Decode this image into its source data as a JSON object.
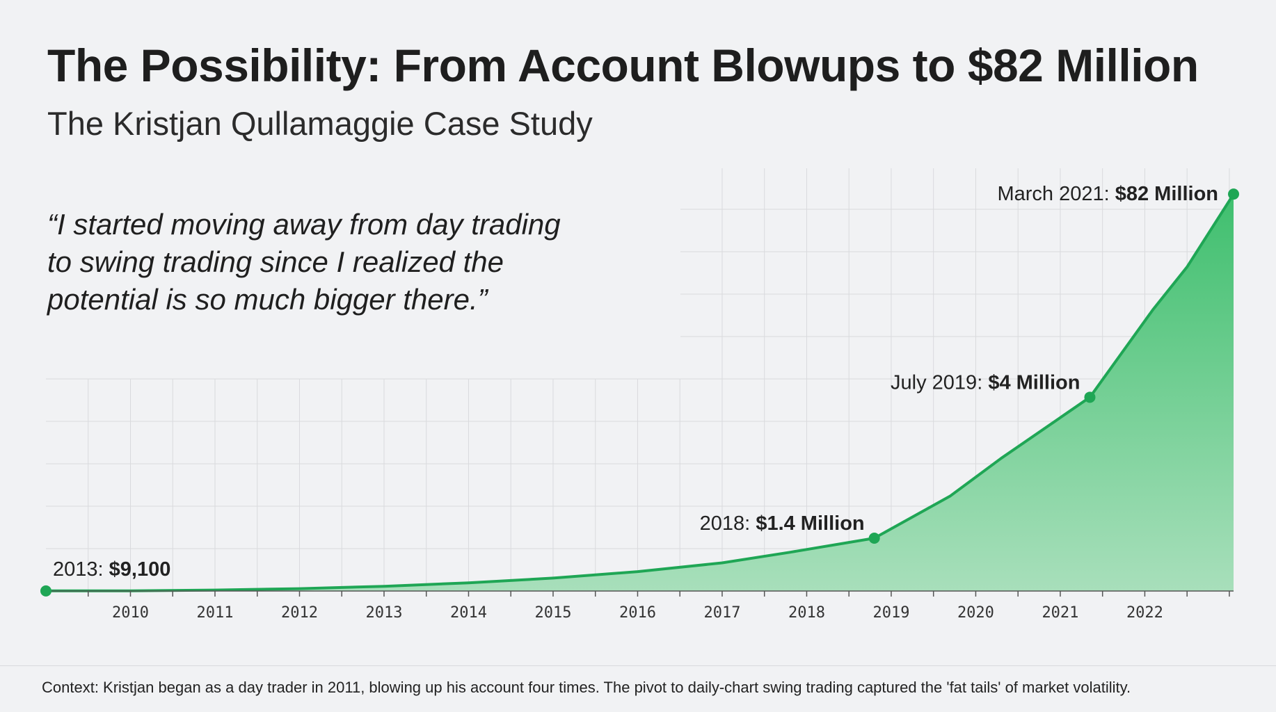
{
  "header": {
    "title": "The Possibility: From Account Blowups to $82 Million",
    "subtitle": "The Kristjan Qullamaggie Case Study"
  },
  "quote": {
    "lines": [
      "“I started moving away from day trading",
      "to swing trading since I realized the",
      "potential is so much bigger there.”"
    ]
  },
  "footer": {
    "context": "Context: Kristjan began as a day trader in 2011, blowing up his account four times. The pivot to daily-chart swing trading captured the 'fat tails' of market volatility."
  },
  "chart_data": {
    "type": "area",
    "categories": [
      "2010",
      "2011",
      "2012",
      "2013",
      "2014",
      "2015",
      "2016",
      "2017",
      "2018",
      "2019",
      "2020",
      "2021",
      "2022"
    ],
    "series": [
      {
        "x": [
          2009.0,
          2010,
          2011,
          2012,
          2013,
          2014,
          2015,
          2016,
          2017,
          2017.8,
          2018.8,
          2019.7,
          2020.3,
          2021.35,
          2022.1,
          2022.5,
          2023.05
        ],
        "y": [
          0.0091,
          0.02,
          0.08,
          0.2,
          0.4,
          0.7,
          1.1,
          1.65,
          2.4,
          3.3,
          4.5,
          8.1,
          11.3,
          16.5,
          24.0,
          27.6,
          33.8
        ]
      }
    ],
    "annotations": [
      {
        "label": "2013: ",
        "value": "$9,100",
        "x": 2009.0,
        "y": 0.0091
      },
      {
        "label": "2018: ",
        "value": "$1.4 Million",
        "x": 2018.8,
        "y": 4.5
      },
      {
        "label": "July 2019: ",
        "value": "$4 Million",
        "x": 2021.35,
        "y": 16.5
      },
      {
        "label": "March 2021: ",
        "value": "$82 Million",
        "x": 2023.05,
        "y": 33.8
      }
    ],
    "xlim": [
      2009.0,
      2023.05
    ],
    "ylim": [
      0,
      36
    ],
    "grid": true,
    "colors": {
      "line": "#1fa655",
      "fill_top": "#3fbf6e",
      "fill_bottom": "#a8dfbb",
      "marker": "#1fa655"
    }
  }
}
